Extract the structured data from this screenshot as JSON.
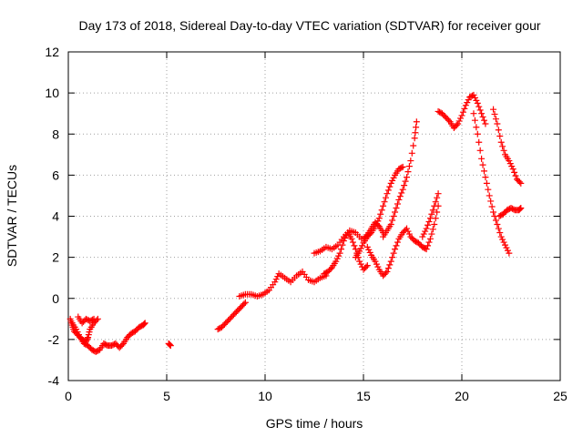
{
  "chart_data": {
    "type": "scatter",
    "title": "Day 173 of 2018, Sidereal Day-to-day VTEC variation (SDTVAR) for receiver gour",
    "xlabel": "GPS time / hours",
    "ylabel": "SDTVAR / TECUs",
    "xlim": [
      0,
      25
    ],
    "ylim": [
      -4,
      12
    ],
    "xticks": [
      "0",
      "5",
      "10",
      "15",
      "20",
      "25"
    ],
    "yticks": [
      "-4",
      "-2",
      "0",
      "2",
      "4",
      "6",
      "8",
      "10",
      "12"
    ],
    "grid": true,
    "marker": "plus",
    "color": "#ff0000",
    "series": [
      {
        "x": [
          0.1,
          0.2,
          0.3,
          0.5,
          0.7,
          0.9,
          1.0,
          1.1,
          1.3,
          1.5
        ],
        "y": [
          -1.0,
          -1.3,
          -1.6,
          -1.8,
          -2.0,
          -2.1,
          -1.9,
          -1.5,
          -1.2,
          -1.0
        ]
      },
      {
        "x": [
          0.2,
          0.4,
          0.6,
          0.8,
          1.0,
          1.2,
          1.4,
          1.6,
          1.8,
          2.0,
          2.2,
          2.4,
          2.6,
          2.8,
          3.0,
          3.2,
          3.4,
          3.6,
          3.8,
          3.9
        ],
        "y": [
          -1.2,
          -1.5,
          -1.9,
          -2.2,
          -2.3,
          -2.5,
          -2.6,
          -2.5,
          -2.2,
          -2.3,
          -2.3,
          -2.2,
          -2.4,
          -2.2,
          -1.9,
          -1.7,
          -1.6,
          -1.4,
          -1.3,
          -1.2
        ]
      },
      {
        "x": [
          0.5,
          0.7,
          0.9,
          1.1,
          1.3
        ],
        "y": [
          -0.9,
          -1.2,
          -1.0,
          -1.1,
          -1.0
        ]
      },
      {
        "x": [
          5.1,
          5.2
        ],
        "y": [
          -2.2,
          -2.3
        ]
      },
      {
        "x": [
          7.6,
          7.8,
          8.0,
          8.2,
          8.4,
          8.6,
          8.8,
          9.0
        ],
        "y": [
          -1.5,
          -1.4,
          -1.2,
          -1.0,
          -0.8,
          -0.6,
          -0.4,
          -0.2
        ]
      },
      {
        "x": [
          8.7,
          9.0,
          9.3,
          9.6,
          9.9,
          10.2,
          10.5,
          10.7,
          11.0,
          11.3,
          11.6,
          11.9,
          12.2,
          12.5,
          12.8,
          13.1
        ],
        "y": [
          0.1,
          0.2,
          0.2,
          0.1,
          0.2,
          0.4,
          0.8,
          1.2,
          1.0,
          0.8,
          1.1,
          1.3,
          0.9,
          0.8,
          1.0,
          1.1
        ]
      },
      {
        "x": [
          13.0,
          13.2,
          13.4,
          13.6,
          13.8,
          14.0,
          14.2,
          14.4,
          14.6,
          14.8,
          15.0,
          15.2
        ],
        "y": [
          1.2,
          1.3,
          1.5,
          1.8,
          2.2,
          2.8,
          3.2,
          2.9,
          2.4,
          1.8,
          1.4,
          1.6
        ]
      },
      {
        "x": [
          12.5,
          12.8,
          13.1,
          13.4,
          13.7,
          14.0,
          14.3,
          14.6,
          14.9
        ],
        "y": [
          2.2,
          2.3,
          2.5,
          2.4,
          2.6,
          3.0,
          3.3,
          3.2,
          2.9
        ]
      },
      {
        "x": [
          14.6,
          14.8,
          15.0,
          15.2,
          15.4,
          15.6,
          15.8,
          16.0,
          16.2,
          16.4,
          16.6,
          16.8,
          17.0
        ],
        "y": [
          2.0,
          2.3,
          2.7,
          3.0,
          3.2,
          3.5,
          3.9,
          4.5,
          5.1,
          5.6,
          6.0,
          6.3,
          6.4
        ]
      },
      {
        "x": [
          15.0,
          15.2,
          15.4,
          15.6,
          15.8,
          16.0
        ],
        "y": [
          2.9,
          3.1,
          3.4,
          3.7,
          3.5,
          3.2
        ]
      },
      {
        "x": [
          15.2,
          15.4,
          15.6,
          15.8,
          16.0,
          16.2,
          16.4,
          16.6,
          16.8,
          17.0,
          17.2,
          17.4,
          17.6,
          17.8,
          18.0,
          18.2,
          18.4,
          18.6,
          18.8
        ],
        "y": [
          2.5,
          2.1,
          1.8,
          1.4,
          1.1,
          1.3,
          1.8,
          2.4,
          2.9,
          3.2,
          3.4,
          3.0,
          2.8,
          2.7,
          2.5,
          2.4,
          2.9,
          3.6,
          4.5
        ]
      },
      {
        "x": [
          16.0,
          16.2,
          16.4,
          16.6,
          16.8,
          17.0,
          17.2,
          17.4,
          17.6,
          17.7
        ],
        "y": [
          3.0,
          3.3,
          3.6,
          4.2,
          4.8,
          5.3,
          5.9,
          6.7,
          7.8,
          8.6
        ]
      },
      {
        "x": [
          18.0,
          18.2,
          18.4,
          18.6,
          18.8
        ],
        "y": [
          3.0,
          3.4,
          3.9,
          4.5,
          5.1
        ]
      },
      {
        "x": [
          18.8,
          19.0,
          19.2,
          19.4,
          19.6,
          19.8,
          20.0,
          20.2,
          20.4,
          20.6,
          20.8,
          21.0,
          21.2
        ],
        "y": [
          9.1,
          9.0,
          8.8,
          8.6,
          8.3,
          8.5,
          8.9,
          9.4,
          9.8,
          9.9,
          9.5,
          9.0,
          8.5
        ]
      },
      {
        "x": [
          20.6,
          20.8,
          21.0,
          21.2,
          21.4,
          21.6,
          21.8,
          22.0,
          22.2,
          22.4
        ],
        "y": [
          9.0,
          8.0,
          6.8,
          5.9,
          5.0,
          4.2,
          3.6,
          3.0,
          2.6,
          2.2
        ]
      },
      {
        "x": [
          21.6,
          21.8,
          22.0,
          22.2,
          22.4,
          22.6,
          22.8,
          23.0
        ],
        "y": [
          9.2,
          8.5,
          7.6,
          7.0,
          6.7,
          6.3,
          5.8,
          5.6
        ]
      },
      {
        "x": [
          21.9,
          22.1,
          22.3,
          22.5,
          22.7,
          22.9,
          23.0
        ],
        "y": [
          4.0,
          4.1,
          4.3,
          4.4,
          4.3,
          4.3,
          4.4
        ]
      }
    ]
  }
}
